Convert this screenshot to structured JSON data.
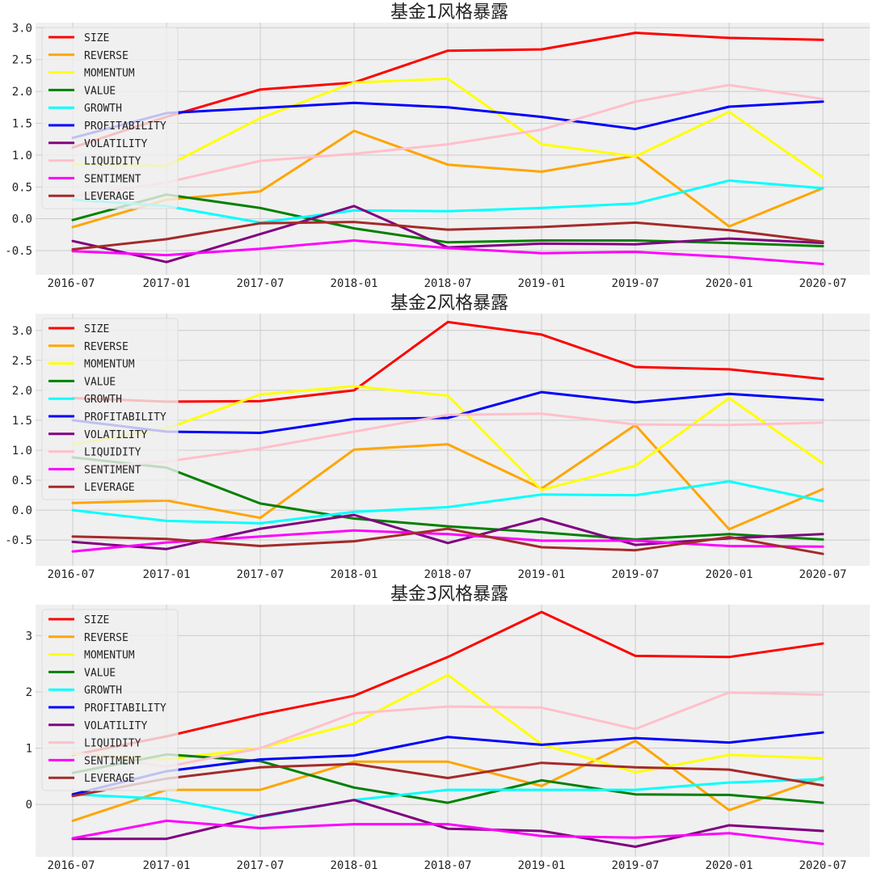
{
  "figure": {
    "background": "#ffffff",
    "panel_background": "#f0f0f0",
    "grid_color": "#cbcbcb"
  },
  "series_colors": {
    "SIZE": "#ff0000",
    "REVERSE": "#ffa500",
    "MOMENTUM": "#ffff00",
    "VALUE": "#008000",
    "GROWTH": "#00ffff",
    "PROFITABILITY": "#0000ff",
    "VOLATILITY": "#800080",
    "LIQUIDITY": "#ffc0cb",
    "SENTIMENT": "#ff00ff",
    "LEVERAGE": "#a52a2a"
  },
  "chart_data": [
    {
      "type": "line",
      "title": "基金1风格暴露",
      "x": [
        "2016-07",
        "2017-01",
        "2017-07",
        "2018-01",
        "2018-07",
        "2019-01",
        "2019-07",
        "2020-01",
        "2020-07"
      ],
      "xticks": [
        "2016-07",
        "2017-01",
        "2017-07",
        "2018-01",
        "2018-07",
        "2019-01",
        "2019-07",
        "2020-01",
        "2020-07"
      ],
      "xlim": [
        "2016-07",
        "2020-10"
      ],
      "ylim": [
        -0.88,
        3.08
      ],
      "yticks": [
        -0.5,
        0.0,
        0.5,
        1.0,
        1.5,
        2.0,
        2.5,
        3.0
      ],
      "ytick_labels": [
        "-0.5",
        "0.0",
        "0.5",
        "1.0",
        "1.5",
        "2.0",
        "2.5",
        "3.0"
      ],
      "grid": true,
      "legend": "upper-left",
      "series": [
        {
          "name": "SIZE",
          "values": [
            1.12,
            1.6,
            2.03,
            2.14,
            2.64,
            2.66,
            2.92,
            2.84,
            2.81
          ]
        },
        {
          "name": "REVERSE",
          "values": [
            -0.13,
            0.3,
            0.43,
            1.38,
            0.85,
            0.74,
            0.99,
            -0.12,
            0.48
          ]
        },
        {
          "name": "MOMENTUM",
          "values": [
            0.86,
            0.83,
            1.58,
            2.14,
            2.2,
            1.17,
            0.98,
            1.68,
            0.65
          ]
        },
        {
          "name": "VALUE",
          "values": [
            -0.02,
            0.38,
            0.17,
            -0.15,
            -0.37,
            -0.34,
            -0.34,
            -0.38,
            -0.43
          ]
        },
        {
          "name": "GROWTH",
          "values": [
            0.3,
            0.2,
            -0.06,
            0.13,
            0.12,
            0.17,
            0.24,
            0.6,
            0.48
          ]
        },
        {
          "name": "PROFITABILITY",
          "values": [
            1.27,
            1.66,
            1.74,
            1.82,
            1.75,
            1.6,
            1.41,
            1.76,
            1.84
          ]
        },
        {
          "name": "VOLATILITY",
          "values": [
            -0.35,
            -0.68,
            -0.24,
            0.2,
            -0.45,
            -0.39,
            -0.4,
            -0.31,
            -0.38
          ]
        },
        {
          "name": "LIQUIDITY",
          "values": [
            0.35,
            0.57,
            0.91,
            1.02,
            1.17,
            1.4,
            1.84,
            2.1,
            1.88
          ]
        },
        {
          "name": "SENTIMENT",
          "values": [
            -0.51,
            -0.57,
            -0.47,
            -0.34,
            -0.46,
            -0.54,
            -0.52,
            -0.6,
            -0.71
          ]
        },
        {
          "name": "LEVERAGE",
          "values": [
            -0.48,
            -0.32,
            -0.07,
            -0.05,
            -0.17,
            -0.13,
            -0.06,
            -0.18,
            -0.36
          ]
        }
      ]
    },
    {
      "type": "line",
      "title": "基金2风格暴露",
      "x": [
        "2016-07",
        "2017-01",
        "2017-07",
        "2018-01",
        "2018-07",
        "2019-01",
        "2019-07",
        "2020-01",
        "2020-07"
      ],
      "xticks": [
        "2016-07",
        "2017-01",
        "2017-07",
        "2018-01",
        "2018-07",
        "2019-01",
        "2019-07",
        "2020-01",
        "2020-07"
      ],
      "xlim": [
        "2016-07",
        "2020-10"
      ],
      "ylim": [
        -0.93,
        3.28
      ],
      "yticks": [
        -0.5,
        0.0,
        0.5,
        1.0,
        1.5,
        2.0,
        2.5,
        3.0
      ],
      "ytick_labels": [
        "-0.5",
        "0.0",
        "0.5",
        "1.0",
        "1.5",
        "2.0",
        "2.5",
        "3.0"
      ],
      "grid": true,
      "legend": "upper-left",
      "series": [
        {
          "name": "SIZE",
          "values": [
            1.87,
            1.81,
            1.82,
            2.0,
            3.14,
            2.93,
            2.39,
            2.35,
            2.19
          ]
        },
        {
          "name": "REVERSE",
          "values": [
            0.12,
            0.16,
            -0.13,
            1.01,
            1.1,
            0.36,
            1.42,
            -0.32,
            0.35
          ]
        },
        {
          "name": "MOMENTUM",
          "values": [
            1.1,
            1.36,
            1.93,
            2.07,
            1.91,
            0.34,
            0.74,
            1.87,
            0.78
          ]
        },
        {
          "name": "VALUE",
          "values": [
            0.88,
            0.71,
            0.11,
            -0.14,
            -0.27,
            -0.37,
            -0.49,
            -0.4,
            -0.49
          ]
        },
        {
          "name": "GROWTH",
          "values": [
            0.0,
            -0.18,
            -0.22,
            -0.03,
            0.05,
            0.26,
            0.25,
            0.48,
            0.15
          ]
        },
        {
          "name": "PROFITABILITY",
          "values": [
            1.5,
            1.31,
            1.29,
            1.52,
            1.54,
            1.97,
            1.8,
            1.94,
            1.84
          ]
        },
        {
          "name": "VOLATILITY",
          "values": [
            -0.53,
            -0.65,
            -0.31,
            -0.08,
            -0.55,
            -0.14,
            -0.58,
            -0.47,
            -0.4
          ]
        },
        {
          "name": "LIQUIDITY",
          "values": [
            0.7,
            0.81,
            1.03,
            1.31,
            1.59,
            1.61,
            1.43,
            1.42,
            1.46
          ]
        },
        {
          "name": "SENTIMENT",
          "values": [
            -0.69,
            -0.54,
            -0.44,
            -0.34,
            -0.4,
            -0.51,
            -0.51,
            -0.6,
            -0.61
          ]
        },
        {
          "name": "LEVERAGE",
          "values": [
            -0.44,
            -0.48,
            -0.6,
            -0.52,
            -0.31,
            -0.62,
            -0.67,
            -0.45,
            -0.73
          ]
        }
      ]
    },
    {
      "type": "line",
      "title": "基金3风格暴露",
      "x": [
        "2016-07",
        "2017-01",
        "2017-07",
        "2018-01",
        "2018-07",
        "2019-01",
        "2019-07",
        "2020-01",
        "2020-07"
      ],
      "xticks": [
        "2016-07",
        "2017-01",
        "2017-07",
        "2018-01",
        "2018-07",
        "2019-01",
        "2019-07",
        "2020-01",
        "2020-07"
      ],
      "xlim": [
        "2016-07",
        "2020-10"
      ],
      "ylim": [
        -0.93,
        3.55
      ],
      "yticks": [
        0,
        1,
        2,
        3
      ],
      "ytick_labels": [
        "0",
        "1",
        "2",
        "3"
      ],
      "grid": true,
      "legend": "upper-left",
      "series": [
        {
          "name": "SIZE",
          "values": [
            0.88,
            1.21,
            1.6,
            1.93,
            2.62,
            3.42,
            2.64,
            2.62,
            2.86
          ]
        },
        {
          "name": "REVERSE",
          "values": [
            -0.29,
            0.26,
            0.26,
            0.76,
            0.76,
            0.33,
            1.13,
            -0.1,
            0.48
          ]
        },
        {
          "name": "MOMENTUM",
          "values": [
            0.9,
            0.8,
            1.0,
            1.44,
            2.3,
            1.07,
            0.57,
            0.88,
            0.82
          ]
        },
        {
          "name": "VALUE",
          "values": [
            0.56,
            0.89,
            0.77,
            0.3,
            0.03,
            0.43,
            0.18,
            0.17,
            0.03
          ]
        },
        {
          "name": "GROWTH",
          "values": [
            0.18,
            0.1,
            -0.22,
            0.08,
            0.26,
            0.26,
            0.26,
            0.39,
            0.45
          ]
        },
        {
          "name": "PROFITABILITY",
          "values": [
            0.18,
            0.59,
            0.8,
            0.87,
            1.2,
            1.06,
            1.18,
            1.1,
            1.28
          ]
        },
        {
          "name": "VOLATILITY",
          "values": [
            -0.61,
            -0.61,
            -0.21,
            0.08,
            -0.43,
            -0.47,
            -0.75,
            -0.37,
            -0.47
          ]
        },
        {
          "name": "LIQUIDITY",
          "values": [
            0.93,
            0.67,
            1.0,
            1.62,
            1.74,
            1.72,
            1.34,
            1.99,
            1.95
          ]
        },
        {
          "name": "SENTIMENT",
          "values": [
            -0.6,
            -0.29,
            -0.42,
            -0.35,
            -0.35,
            -0.56,
            -0.59,
            -0.51,
            -0.7
          ]
        },
        {
          "name": "LEVERAGE",
          "values": [
            0.15,
            0.46,
            0.66,
            0.72,
            0.47,
            0.74,
            0.66,
            0.62,
            0.34
          ]
        }
      ]
    }
  ]
}
